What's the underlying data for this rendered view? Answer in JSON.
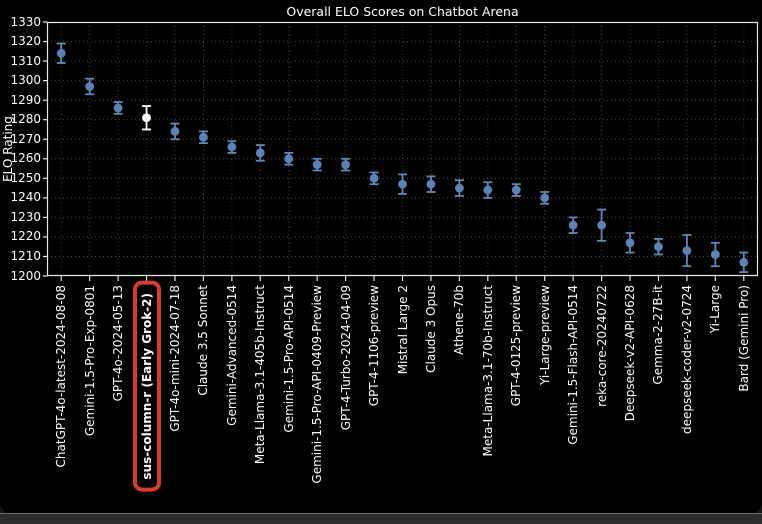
{
  "chart_data": {
    "type": "scatter",
    "title": "Overall ELO Scores on Chatbot Arena",
    "ylabel": "ELO Rating",
    "xlabel": "",
    "ylim": [
      1200,
      1330
    ],
    "yticks": [
      1200,
      1210,
      1220,
      1230,
      1240,
      1250,
      1260,
      1270,
      1280,
      1290,
      1300,
      1310,
      1320,
      1330
    ],
    "grid": true,
    "grid_style": "dotted",
    "legend": "none",
    "categories": [
      "ChatGPT-4o-latest-2024-08-08",
      "Gemini-1.5-Pro-Exp-0801",
      "GPT-4o-2024-05-13",
      "sus-column-r (Early Grok-2)",
      "GPT-4o-mini-2024-07-18",
      "Claude 3.5 Sonnet",
      "Gemini-Advanced-0514",
      "Meta-Llama-3.1-405b-Instruct",
      "Gemini-1.5-Pro-API-0514",
      "Gemini-1.5-Pro-API-0409-Preview",
      "GPT-4-Turbo-2024-04-09",
      "GPT-4-1106-preview",
      "Mistral Large 2",
      "Claude 3 Opus",
      "Athene-70b",
      "Meta-Llama-3.1-70b-Instruct",
      "GPT-4-0125-preview",
      "Yi-Large-preview",
      "Gemini-1.5-Flash-API-0514",
      "reka-core-20240722",
      "Deepseek-v2-API-0628",
      "Gemma-2-27B-it",
      "deepseek-coder-v2-0724",
      "Yi-Large",
      "Bard (Gemini Pro)"
    ],
    "series": [
      {
        "name": "Overall ELO score",
        "marker": "circle-with-error-bars",
        "values": [
          1314,
          1297,
          1286,
          1281,
          1274,
          1271,
          1266,
          1263,
          1260,
          1257,
          1257,
          1250,
          1247,
          1247,
          1245,
          1244,
          1244,
          1240,
          1226,
          1226,
          1217,
          1215,
          1213,
          1211,
          1207
        ],
        "errors": [
          5,
          4,
          3,
          6,
          4,
          3,
          3,
          4,
          3,
          3,
          3,
          3,
          5,
          4,
          4,
          4,
          3,
          3,
          4,
          8,
          5,
          4,
          8,
          6,
          5
        ]
      }
    ],
    "highlight": {
      "index": 3,
      "label": "sus-column-r (Early Grok-2)",
      "marker_color": "#ffffff",
      "box_color": "#d93b2c",
      "label_style": "bold-white-in-red-rounded-box"
    },
    "colors": {
      "point": "#5d83b4",
      "error_bar": "#6189ba",
      "background": "#000000",
      "axis": "#e8e8e8",
      "grid": "#9a9a9a",
      "text": "#ffffff"
    }
  }
}
